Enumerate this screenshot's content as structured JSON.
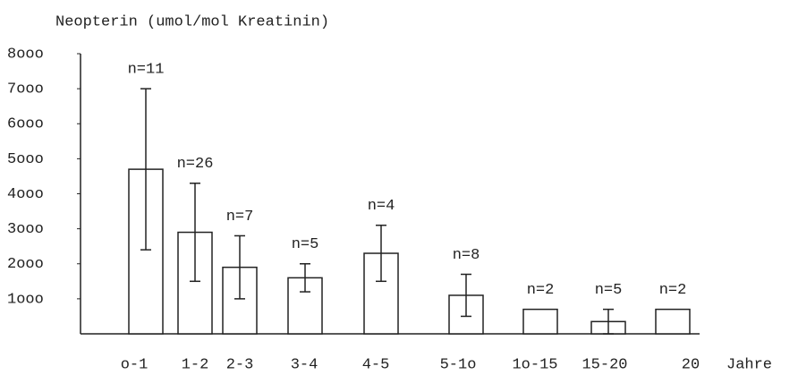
{
  "chart_data": {
    "type": "bar",
    "y_label": "Neopterin (umol/mol Kreatinin)",
    "x_label": "Jahre",
    "categories": [
      "o-1",
      "1-2",
      "2-3",
      "3-4",
      "4-5",
      "5-1o",
      "1o-15",
      "15-20",
      "20"
    ],
    "values": [
      4700,
      2900,
      1900,
      1600,
      2300,
      1100,
      700,
      350,
      700
    ],
    "errors": [
      2300,
      1400,
      900,
      400,
      800,
      600,
      null,
      350,
      null
    ],
    "annotations": [
      "n=11",
      "n=26",
      "n=7",
      "n=5",
      "n=4",
      "n=8",
      "n=2",
      "n=5",
      "n=2"
    ],
    "color": "#ffffff",
    "ylim": [
      0,
      8000
    ],
    "yticks": [
      {
        "value": 1000,
        "label": "1ooo"
      },
      {
        "value": 2000,
        "label": "2ooo"
      },
      {
        "value": 3000,
        "label": "3ooo"
      },
      {
        "value": 4000,
        "label": "4ooo"
      },
      {
        "value": 5000,
        "label": "5ooo"
      },
      {
        "value": 6000,
        "label": "6ooo"
      },
      {
        "value": 7000,
        "label": "7ooo"
      },
      {
        "value": 8000,
        "label": "8ooo"
      }
    ],
    "grid": false
  }
}
